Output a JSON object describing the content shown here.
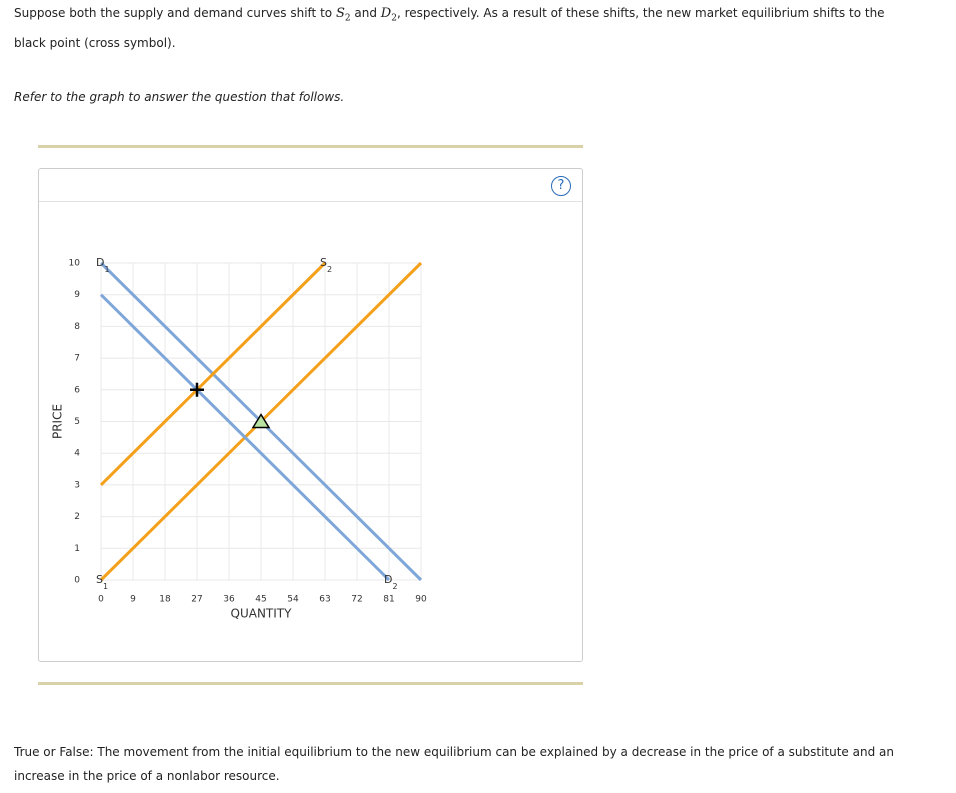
{
  "intro": [
    "Suppose both the supply and demand curves shift to ",
    "S",
    "2",
    " and ",
    "D",
    "2",
    ", respectively. As a result of these shifts, the new market equilibrium shifts to the black point (cross symbol)."
  ],
  "instruction": "Refer to the graph to answer the question that follows.",
  "help": "?",
  "question": "True or False: The movement from the initial equilibrium to the new equilibrium can be explained by a decrease in the price of a substitute and an increase in the price of a nonlabor resource.",
  "chart_data": {
    "type": "line",
    "x_label": "QUANTITY",
    "y_label": "PRICE",
    "xlim": [
      0,
      90
    ],
    "ylim": [
      0,
      10
    ],
    "xticks": [
      0,
      9,
      18,
      27,
      36,
      45,
      54,
      63,
      72,
      81,
      90
    ],
    "yticks": [
      0,
      1,
      2,
      3,
      4,
      5,
      6,
      7,
      8,
      9,
      10
    ],
    "grid": true,
    "series": [
      {
        "name": "D",
        "subscript": "1",
        "color": "#7ea6d8",
        "x": [
          0,
          90
        ],
        "values": [
          10,
          0
        ]
      },
      {
        "name": "S",
        "subscript": "2",
        "color": "#f5a01a",
        "x": [
          0,
          63
        ],
        "values": [
          3,
          10
        ]
      },
      {
        "name": "S",
        "subscript": "1",
        "color": "#f5a01a",
        "x": [
          0,
          90
        ],
        "values": [
          0,
          10
        ]
      },
      {
        "name": "D",
        "subscript": "2",
        "color": "#7ea6d8",
        "x": [
          0,
          81
        ],
        "values": [
          9,
          0
        ]
      }
    ],
    "markers": [
      {
        "shape": "triangle",
        "x": 45,
        "y": 5,
        "color": "#b9e3a3"
      },
      {
        "shape": "cross",
        "x": 27,
        "y": 6,
        "color": "#000000"
      }
    ]
  }
}
